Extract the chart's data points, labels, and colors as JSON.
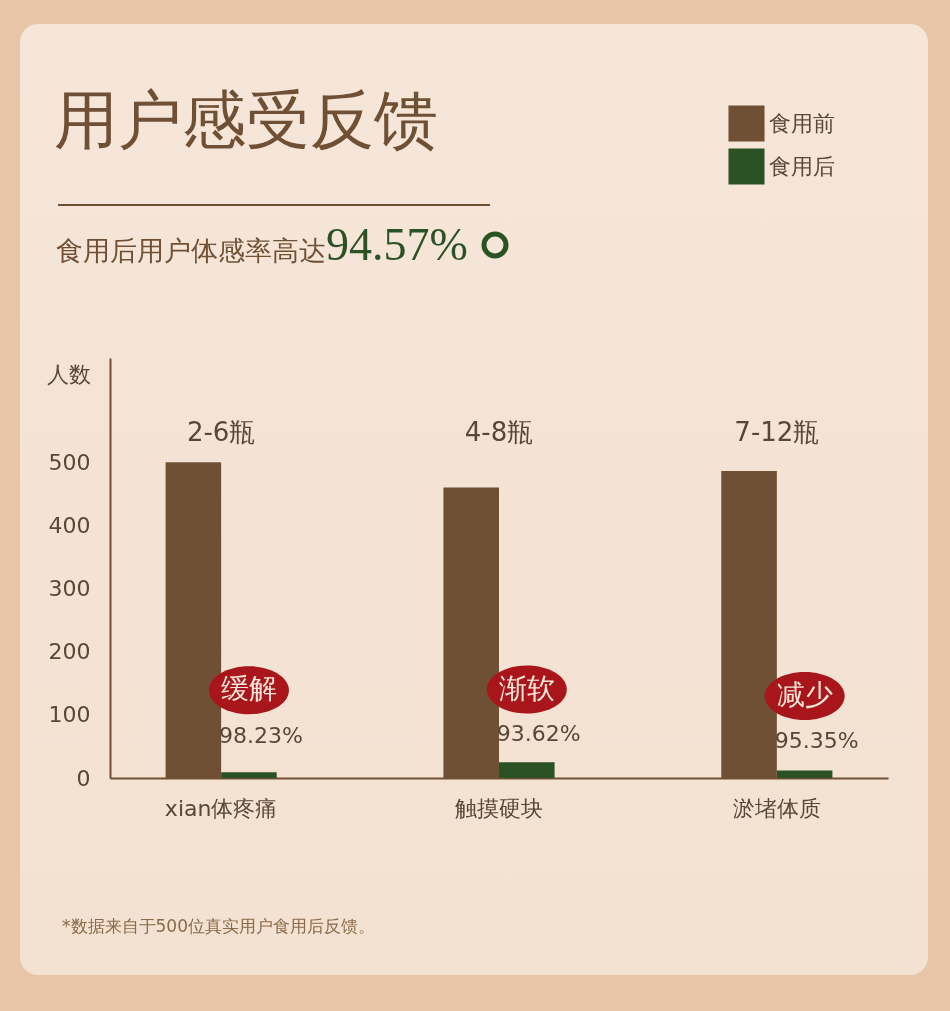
{
  "chart_data": {
    "type": "bar",
    "title": "用户感受反馈",
    "subtitle": "食用后用户体感率高达94.57%",
    "ylabel": "人数",
    "categories": [
      "xian体疼痛",
      "触摸硬块",
      "淤堵体质"
    ],
    "series": [
      {
        "name": "食用前",
        "color": "#6f5035",
        "values": [
          500,
          460,
          486
        ]
      },
      {
        "name": "食用后",
        "color": "#2b5224",
        "values": [
          9,
          25,
          12
        ]
      }
    ],
    "ylim": [
      0,
      665
    ],
    "yticks": [
      0,
      100,
      200,
      300,
      400,
      500
    ],
    "grid": false,
    "legend": "top right",
    "annotations": [
      "2-6瓶",
      "4-8瓶",
      "7-12瓶",
      {
        "text": "98.23%",
        "x": "xian体疼痛",
        "y": 66
      },
      {
        "text": "93.62%",
        "x": "触摸硬块",
        "y": 70
      },
      {
        "text": "95.35%",
        "x": "淤堵体质",
        "y": 58
      },
      {
        "text": "缓解",
        "x": "xian体疼痛",
        "y": 139
      },
      {
        "text": "渐软",
        "x": "触摸硬块",
        "y": 140
      },
      {
        "text": "减少",
        "x": "淤堵体质",
        "y": 130
      },
      "*数据来自于500位真实用户食用后反馈。"
    ]
  }
}
